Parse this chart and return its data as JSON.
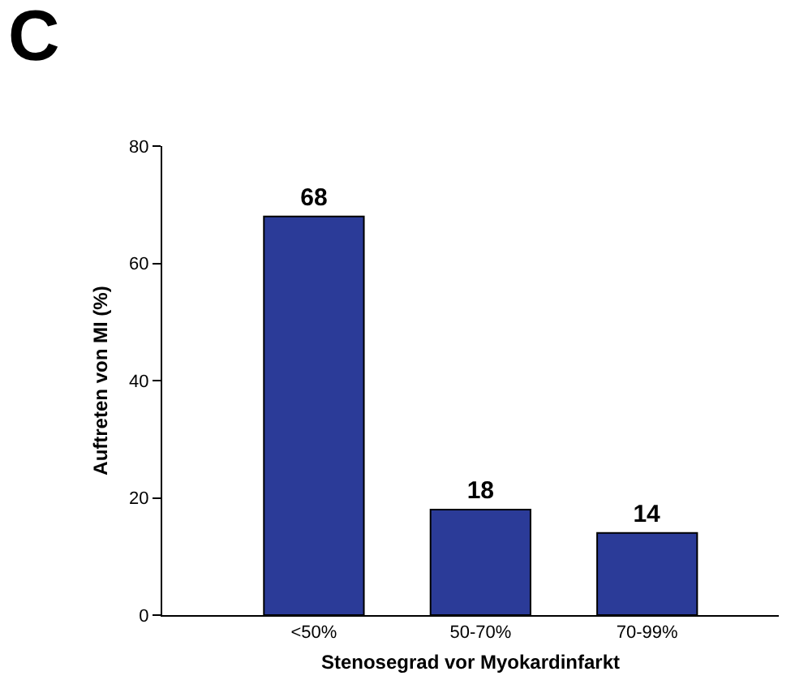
{
  "chart_data": {
    "type": "bar",
    "title": "C",
    "xlabel": "Stenosegrad vor Myokardinfarkt",
    "ylabel": "Auftreten von MI (%)",
    "categories": [
      "<50%",
      "50-70%",
      "70-99%"
    ],
    "values": [
      68,
      18,
      14
    ],
    "color": "#2b3b98",
    "ylim": [
      0,
      80
    ],
    "yticks": [
      0,
      20,
      40,
      60,
      80
    ],
    "data_labels": true
  }
}
